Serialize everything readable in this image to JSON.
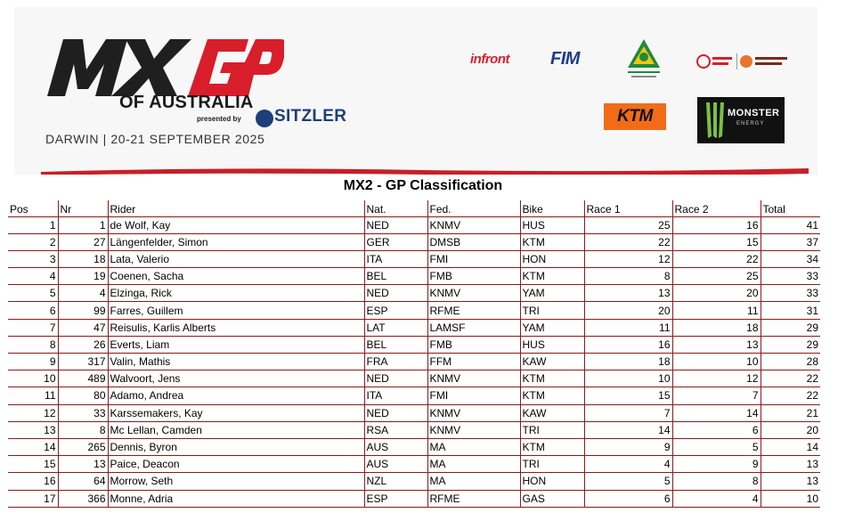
{
  "banner": {
    "event_name": "OF AUSTRALIA",
    "presented_by": "presented by",
    "sponsor_main": "SITZLER",
    "dateline": "DARWIN | 20-21 SEPTEMBER 2025",
    "logos": {
      "mxgp": "mxgp-logo",
      "infront": "infront",
      "fim": "FIM",
      "motorcycling_australia": "MOTORCYCLING AUSTRALIA",
      "ktm": "KTM",
      "monster": "MONSTER",
      "monster_sub": "ENERGY"
    },
    "colors": {
      "brand_red": "#d81e2a",
      "fim_blue": "#1e3c8c",
      "ktm_orange": "#f26c18",
      "table_rule": "#8a1b1b"
    }
  },
  "title": "MX2 - GP Classification",
  "table": {
    "headers": [
      "Pos",
      "Nr",
      "Rider",
      "Nat.",
      "Fed.",
      "Bike",
      "Race 1",
      "Race 2",
      "Total"
    ],
    "rows": [
      [
        "1",
        "1",
        "de Wolf, Kay",
        "NED",
        "KNMV",
        "HUS",
        "25",
        "16",
        "41"
      ],
      [
        "2",
        "27",
        "Längenfelder, Simon",
        "GER",
        "DMSB",
        "KTM",
        "22",
        "15",
        "37"
      ],
      [
        "3",
        "18",
        "Lata, Valerio",
        "ITA",
        "FMI",
        "HON",
        "12",
        "22",
        "34"
      ],
      [
        "4",
        "19",
        "Coenen, Sacha",
        "BEL",
        "FMB",
        "KTM",
        "8",
        "25",
        "33"
      ],
      [
        "5",
        "4",
        "Elzinga, Rick",
        "NED",
        "KNMV",
        "YAM",
        "13",
        "20",
        "33"
      ],
      [
        "6",
        "99",
        "Farres, Guillem",
        "ESP",
        "RFME",
        "TRI",
        "20",
        "11",
        "31"
      ],
      [
        "7",
        "47",
        "Reisulis, Karlis Alberts",
        "LAT",
        "LAMSF",
        "YAM",
        "11",
        "18",
        "29"
      ],
      [
        "8",
        "26",
        "Everts, Liam",
        "BEL",
        "FMB",
        "HUS",
        "16",
        "13",
        "29"
      ],
      [
        "9",
        "317",
        "Valin, Mathis",
        "FRA",
        "FFM",
        "KAW",
        "18",
        "10",
        "28"
      ],
      [
        "10",
        "489",
        "Walvoort, Jens",
        "NED",
        "KNMV",
        "KTM",
        "10",
        "12",
        "22"
      ],
      [
        "11",
        "80",
        "Adamo, Andrea",
        "ITA",
        "FMI",
        "KTM",
        "15",
        "7",
        "22"
      ],
      [
        "12",
        "33",
        "Karssemakers, Kay",
        "NED",
        "KNMV",
        "KAW",
        "7",
        "14",
        "21"
      ],
      [
        "13",
        "8",
        "Mc Lellan, Camden",
        "RSA",
        "KNMV",
        "TRI",
        "14",
        "6",
        "20"
      ],
      [
        "14",
        "265",
        "Dennis, Byron",
        "AUS",
        "MA",
        "KTM",
        "9",
        "5",
        "14"
      ],
      [
        "15",
        "13",
        "Paice, Deacon",
        "AUS",
        "MA",
        "TRI",
        "4",
        "9",
        "13"
      ],
      [
        "16",
        "64",
        "Morrow, Seth",
        "NZL",
        "MA",
        "HON",
        "5",
        "8",
        "13"
      ],
      [
        "17",
        "366",
        "Monne, Adria",
        "ESP",
        "RFME",
        "GAS",
        "6",
        "4",
        "10"
      ]
    ]
  }
}
